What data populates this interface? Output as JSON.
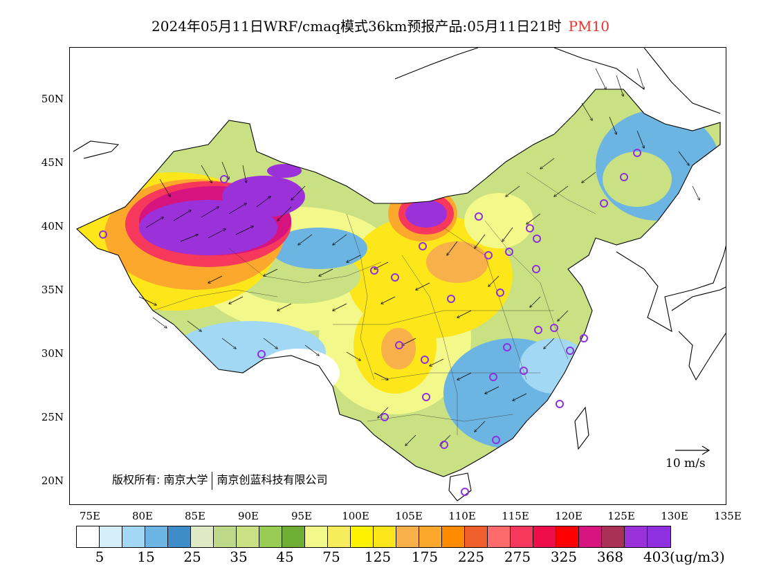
{
  "title": {
    "main": "2024年05月11日WRF/cmaq模式36km预报产品:05月11日21时",
    "species": "PM10"
  },
  "axes": {
    "lat_labels": [
      "50N",
      "45N",
      "40N",
      "35N",
      "30N",
      "25N",
      "20N"
    ],
    "lon_labels": [
      "75E",
      "80E",
      "85E",
      "90E",
      "95E",
      "100E",
      "105E",
      "110E",
      "115E",
      "120E",
      "125E",
      "130E",
      "135E"
    ]
  },
  "copyright": {
    "left": "版权所有: 南京大学",
    "right": "南京创蓝科技有限公司"
  },
  "wind_legend": {
    "label": "10 m/s"
  },
  "colorbar": {
    "colors": [
      "#ffffff",
      "#d6eefa",
      "#a3d8f4",
      "#6cb4e2",
      "#3f8dc8",
      "#dfe9c4",
      "#bfd98a",
      "#c9e182",
      "#99cc55",
      "#6fae35",
      "#f3f88a",
      "#f7ec5c",
      "#fff200",
      "#fde619",
      "#f7b04a",
      "#fba82c",
      "#ff8c00",
      "#f0602e",
      "#ff6a6a",
      "#f5385b",
      "#ef0e4a",
      "#ff0000",
      "#d7137f",
      "#a83155",
      "#9b31d9",
      "#8e2fe0"
    ],
    "labels": [
      "5",
      "15",
      "25",
      "35",
      "45",
      "75",
      "125",
      "175",
      "225",
      "275",
      "325",
      "368",
      "403"
    ],
    "units": "(ug/m3)"
  }
}
